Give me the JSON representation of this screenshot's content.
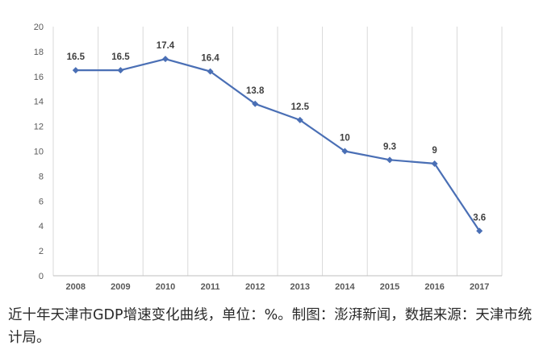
{
  "chart_data": {
    "type": "line",
    "title": "",
    "xlabel": "",
    "ylabel": "",
    "categories": [
      "2008",
      "2009",
      "2010",
      "2011",
      "2012",
      "2013",
      "2014",
      "2015",
      "2016",
      "2017"
    ],
    "series": [
      {
        "name": "天津市GDP增速",
        "values": [
          16.5,
          16.5,
          17.4,
          16.4,
          13.8,
          12.5,
          10,
          9.3,
          9,
          3.6
        ],
        "color": "#4a6fb5"
      }
    ],
    "data_labels": [
      "16.5",
      "16.5",
      "17.4",
      "16.4",
      "13.8",
      "12.5",
      "10",
      "9.3",
      "9",
      "3.6"
    ],
    "ylim": [
      0,
      20
    ],
    "yticks": [
      0,
      2,
      4,
      6,
      8,
      10,
      12,
      14,
      16,
      18,
      20
    ],
    "grid": "vertical"
  },
  "caption": "近十年天津市GDP增速变化曲线，单位：%。制图：澎湃新闻，数据来源：天津市统计局。",
  "colors": {
    "line": "#4a6fb5",
    "grid": "#d9d9d9",
    "text": "#595959"
  }
}
